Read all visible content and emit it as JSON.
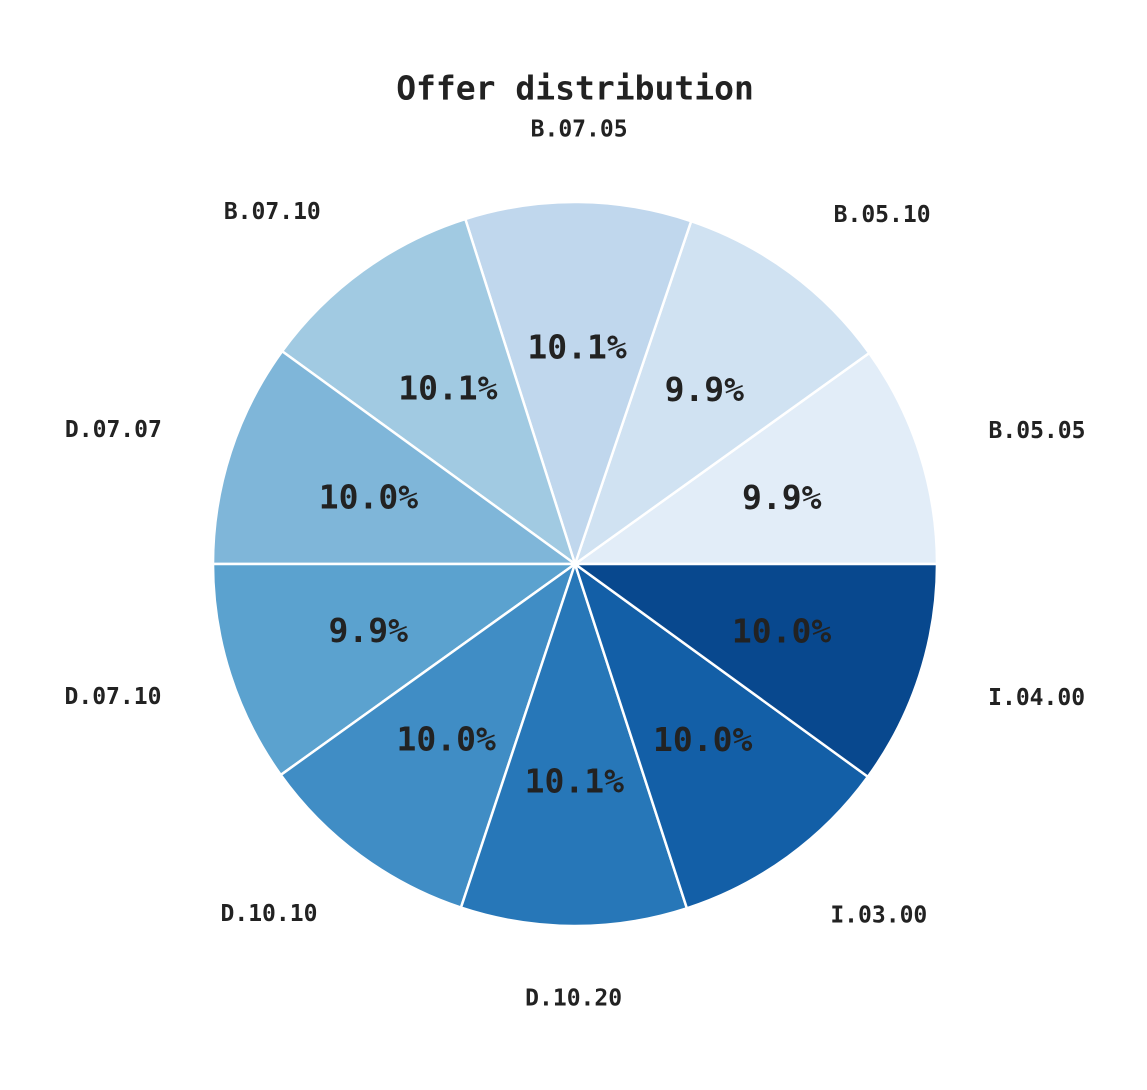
{
  "chart_data": {
    "type": "pie",
    "title": "Offer distribution",
    "slices": [
      {
        "label": "B.05.05",
        "value": 9.9,
        "display": "9.9%",
        "color": "#e2edf8"
      },
      {
        "label": "B.05.10",
        "value": 9.9,
        "display": "9.9%",
        "color": "#d0e2f2"
      },
      {
        "label": "B.07.05",
        "value": 10.1,
        "display": "10.1%",
        "color": "#c0d7ed"
      },
      {
        "label": "B.07.10",
        "value": 10.1,
        "display": "10.1%",
        "color": "#a1cae2"
      },
      {
        "label": "D.07.07",
        "value": 10.0,
        "display": "10.0%",
        "color": "#7fb6d9"
      },
      {
        "label": "D.07.10",
        "value": 9.9,
        "display": "9.9%",
        "color": "#5ba2cf"
      },
      {
        "label": "D.10.10",
        "value": 10.0,
        "display": "10.0%",
        "color": "#408dc5"
      },
      {
        "label": "D.10.20",
        "value": 10.1,
        "display": "10.1%",
        "color": "#2777b8"
      },
      {
        "label": "I.03.00",
        "value": 10.0,
        "display": "10.0%",
        "color": "#135fa7"
      },
      {
        "label": "I.04.00",
        "value": 10.0,
        "display": "10.0%",
        "color": "#08488e"
      }
    ],
    "start": "3 o'clock",
    "direction": "counterclockwise"
  }
}
